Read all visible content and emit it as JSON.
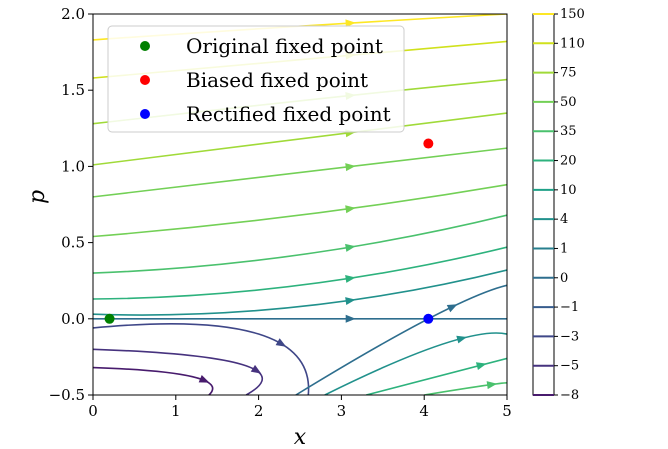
{
  "chart_data": {
    "type": "line",
    "title": "",
    "xlabel": "x",
    "ylabel": "p",
    "xlim": [
      0,
      5
    ],
    "ylim": [
      -0.5,
      2.0
    ],
    "xticks": [
      "0",
      "1",
      "2",
      "3",
      "4",
      "5"
    ],
    "yticks": [
      "−0.5",
      "0.0",
      "0.5",
      "1.0",
      "1.5",
      "2.0"
    ],
    "grid": false,
    "legend_position": "top-left",
    "colormap": "viridis",
    "colorbar": {
      "levels": [
        "150",
        "110",
        "75",
        "50",
        "35",
        "20",
        "10",
        "4",
        "1",
        "0",
        "−1",
        "−3",
        "−5",
        "−8"
      ],
      "colors": [
        "#fde725",
        "#d0e11c",
        "#a0da39",
        "#73d056",
        "#4ac16d",
        "#2db27d",
        "#1fa187",
        "#21918c",
        "#277f8e",
        "#2e6e8e",
        "#365c8d",
        "#3f4788",
        "#46327e",
        "#481b6d"
      ]
    },
    "fixed_points": [
      {
        "name": "Original fixed point",
        "x": 0.2,
        "y": 0.0,
        "color": "#008000"
      },
      {
        "name": "Biased fixed point",
        "x": 4.05,
        "y": 1.15,
        "color": "#ff0000"
      },
      {
        "name": "Rectified fixed point",
        "x": 4.05,
        "y": 0.0,
        "color": "#0000ff"
      }
    ],
    "series": [
      {
        "level": "150",
        "color": "#fde725",
        "x": [
          0,
          2.5,
          5
        ],
        "y": [
          1.83,
          1.92,
          2.0
        ]
      },
      {
        "level": "110",
        "color": "#d0e11c",
        "x": [
          0,
          2.5,
          5
        ],
        "y": [
          1.58,
          1.7,
          1.82
        ]
      },
      {
        "level": "75",
        "color": "#a0da39",
        "x": [
          0,
          2.5,
          5
        ],
        "y": [
          1.28,
          1.43,
          1.57
        ]
      },
      {
        "level": "50",
        "color": "#a0da39",
        "x": [
          0,
          2.5,
          5
        ],
        "y": [
          1.01,
          1.18,
          1.35
        ]
      },
      {
        "level": "35",
        "color": "#73d056",
        "x": [
          0,
          2.5,
          5
        ],
        "y": [
          0.8,
          0.96,
          1.12
        ]
      },
      {
        "level": "20",
        "color": "#73d056",
        "x": [
          0,
          2.5,
          5
        ],
        "y": [
          0.54,
          0.68,
          0.88
        ]
      },
      {
        "level": "10",
        "color": "#4ac16d",
        "x": [
          0,
          2.5,
          5
        ],
        "y": [
          0.3,
          0.42,
          0.68
        ]
      },
      {
        "level": "4",
        "color": "#2db27d",
        "x": [
          0,
          2.5,
          5
        ],
        "y": [
          0.13,
          0.22,
          0.47
        ]
      },
      {
        "level": "1",
        "color": "#21918c",
        "x": [
          0,
          2.5,
          5
        ],
        "y": [
          0.03,
          0.08,
          0.32
        ]
      },
      {
        "level": "0",
        "color": "#2e6e8e",
        "x": [
          0,
          2.5,
          5
        ],
        "y": [
          0.0,
          0.0,
          0.0
        ]
      },
      {
        "level": "−1",
        "color": "#3f4788",
        "x": [
          0,
          2.0,
          2.6
        ],
        "y": [
          -0.06,
          -0.1,
          -0.5
        ]
      },
      {
        "level": "−3",
        "color": "#46327e",
        "x": [
          0,
          1.8,
          1.85
        ],
        "y": [
          -0.2,
          -0.3,
          -0.5
        ]
      },
      {
        "level": "−5",
        "color": "#481b6d",
        "x": [
          0,
          1.2,
          1.4
        ],
        "y": [
          -0.32,
          -0.38,
          -0.5
        ]
      },
      {
        "level": "0",
        "color": "#2e6e8e",
        "x": [
          2.45,
          4.05,
          5
        ],
        "y": [
          -0.5,
          0.0,
          0.22
        ]
      },
      {
        "level": "1",
        "color": "#21918c",
        "x": [
          2.8,
          4.2,
          5
        ],
        "y": [
          -0.5,
          -0.17,
          -0.1
        ]
      },
      {
        "level": "4",
        "color": "#2db27d",
        "x": [
          3.3,
          4.5,
          5
        ],
        "y": [
          -0.5,
          -0.33,
          -0.26
        ]
      },
      {
        "level": "10",
        "color": "#4ac16d",
        "x": [
          4.0,
          4.7,
          5
        ],
        "y": [
          -0.5,
          -0.44,
          -0.42
        ]
      }
    ]
  }
}
